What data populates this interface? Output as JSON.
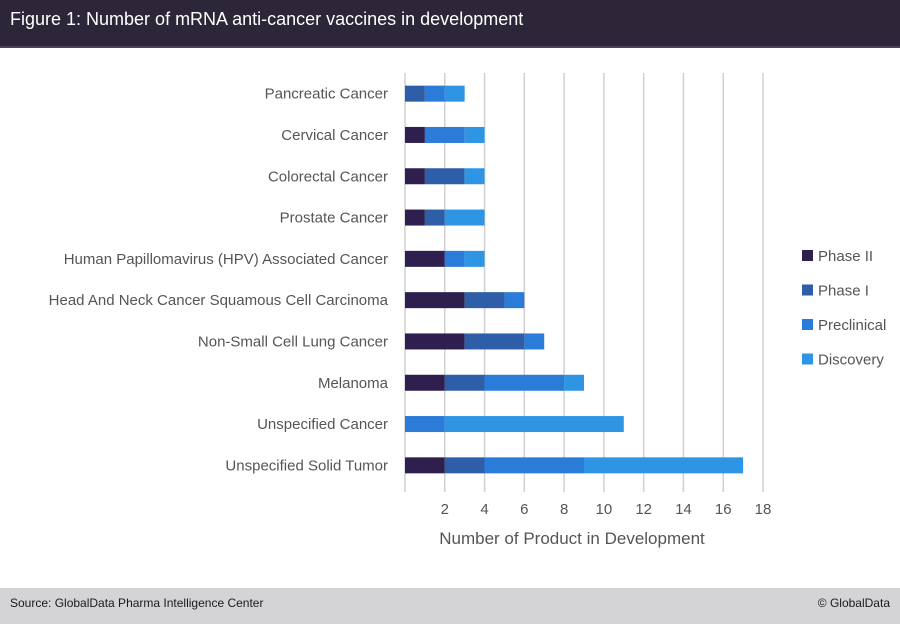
{
  "header": {
    "title": "Figure 1: Number of mRNA anti-cancer vaccines in development"
  },
  "footer": {
    "source": "Source:  GlobalData Pharma Intelligence Center",
    "copyright": "© GlobalData"
  },
  "chart_data": {
    "type": "bar",
    "orientation": "horizontal",
    "stacked": true,
    "title": "Number of mRNA anti-cancer vaccines in development",
    "xlabel": "Number of Product in Development",
    "ylabel": "",
    "xlim": [
      0,
      18
    ],
    "xticks": [
      2,
      4,
      6,
      8,
      10,
      12,
      14,
      16,
      18
    ],
    "grid": true,
    "legend_position": "right",
    "categories": [
      "Pancreatic Cancer",
      "Cervical Cancer",
      "Colorectal Cancer",
      "Prostate Cancer",
      "Human Papillomavirus (HPV) Associated Cancer",
      "Head And Neck Cancer Squamous Cell Carcinoma",
      "Non-Small Cell Lung Cancer",
      "Melanoma",
      "Unspecified Cancer",
      "Unspecified Solid Tumor"
    ],
    "series": [
      {
        "name": "Phase II",
        "color": "#2e1f4f",
        "values": [
          0,
          1,
          1,
          1,
          2,
          3,
          3,
          2,
          0,
          2
        ]
      },
      {
        "name": "Phase I",
        "color": "#2f5ea8",
        "values": [
          1,
          0,
          2,
          1,
          0,
          2,
          3,
          2,
          0,
          2
        ]
      },
      {
        "name": "Preclinical",
        "color": "#2b7bd8",
        "values": [
          1,
          2,
          0,
          0,
          1,
          1,
          1,
          4,
          2,
          5
        ]
      },
      {
        "name": "Discovery",
        "color": "#2e95e5",
        "values": [
          1,
          1,
          1,
          2,
          1,
          0,
          0,
          1,
          9,
          8
        ]
      }
    ]
  }
}
